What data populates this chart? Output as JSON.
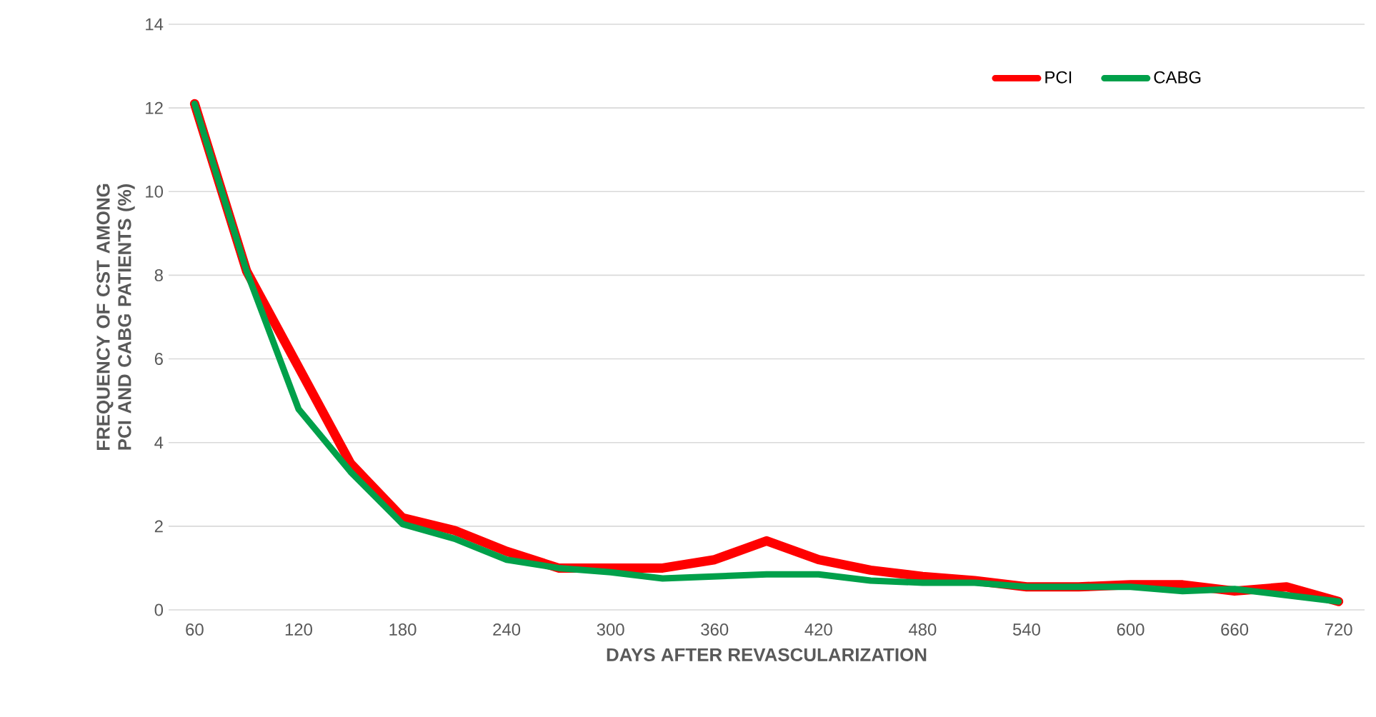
{
  "chart_data": {
    "type": "line",
    "xlabel": "DAYS AFTER REVASCULARIZATION",
    "ylabel": "FREQUENCY OF CST AMONG PCI AND CABG PATIENTS (%)",
    "x": [
      60,
      90,
      120,
      150,
      180,
      210,
      240,
      270,
      300,
      330,
      360,
      390,
      420,
      450,
      480,
      510,
      540,
      570,
      600,
      630,
      660,
      690,
      720
    ],
    "series": [
      {
        "name": "PCI",
        "color": "#ff0000",
        "values": [
          12.1,
          8.1,
          5.8,
          3.5,
          2.2,
          1.9,
          1.4,
          1.0,
          1.0,
          1.0,
          1.2,
          1.65,
          1.2,
          0.95,
          0.8,
          0.7,
          0.55,
          0.55,
          0.6,
          0.6,
          0.45,
          0.55,
          0.2
        ]
      },
      {
        "name": "CABG",
        "color": "#00a04a",
        "values": [
          12.1,
          8.1,
          4.8,
          3.3,
          2.05,
          1.7,
          1.2,
          1.0,
          0.9,
          0.75,
          0.8,
          0.85,
          0.85,
          0.7,
          0.65,
          0.65,
          0.55,
          0.55,
          0.55,
          0.45,
          0.5,
          0.35,
          0.2
        ]
      }
    ],
    "xlim": [
      45,
      735
    ],
    "ylim": [
      0,
      14
    ],
    "xticks": [
      60,
      120,
      180,
      240,
      300,
      360,
      420,
      480,
      540,
      600,
      660,
      720
    ],
    "yticks": [
      0,
      2,
      4,
      6,
      8,
      10,
      12,
      14
    ],
    "grid": "y",
    "legend": "top right",
    "marker": "none",
    "line_style": "solid"
  }
}
